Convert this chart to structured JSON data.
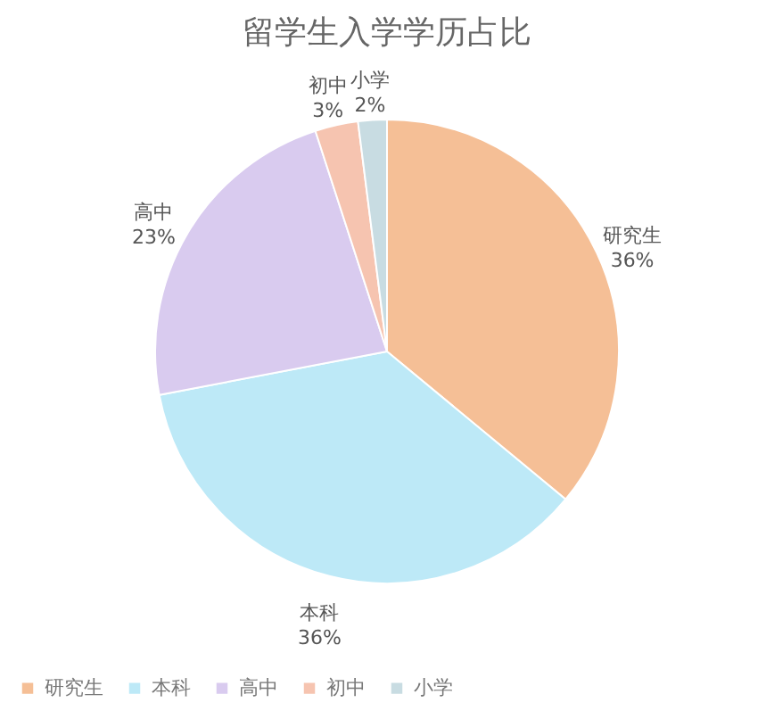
{
  "chart_data": {
    "type": "pie",
    "title": "留学生入学学历占比",
    "categories": [
      "研究生",
      "本科",
      "高中",
      "初中",
      "小学"
    ],
    "values": [
      36,
      36,
      23,
      3,
      2
    ],
    "value_labels": [
      "36%",
      "36%",
      "23%",
      "3%",
      "2%"
    ],
    "colors": [
      "#f5bf96",
      "#bde9f7",
      "#d9cbef",
      "#f6c4b0",
      "#c8dce2"
    ],
    "legend": "bottom"
  }
}
